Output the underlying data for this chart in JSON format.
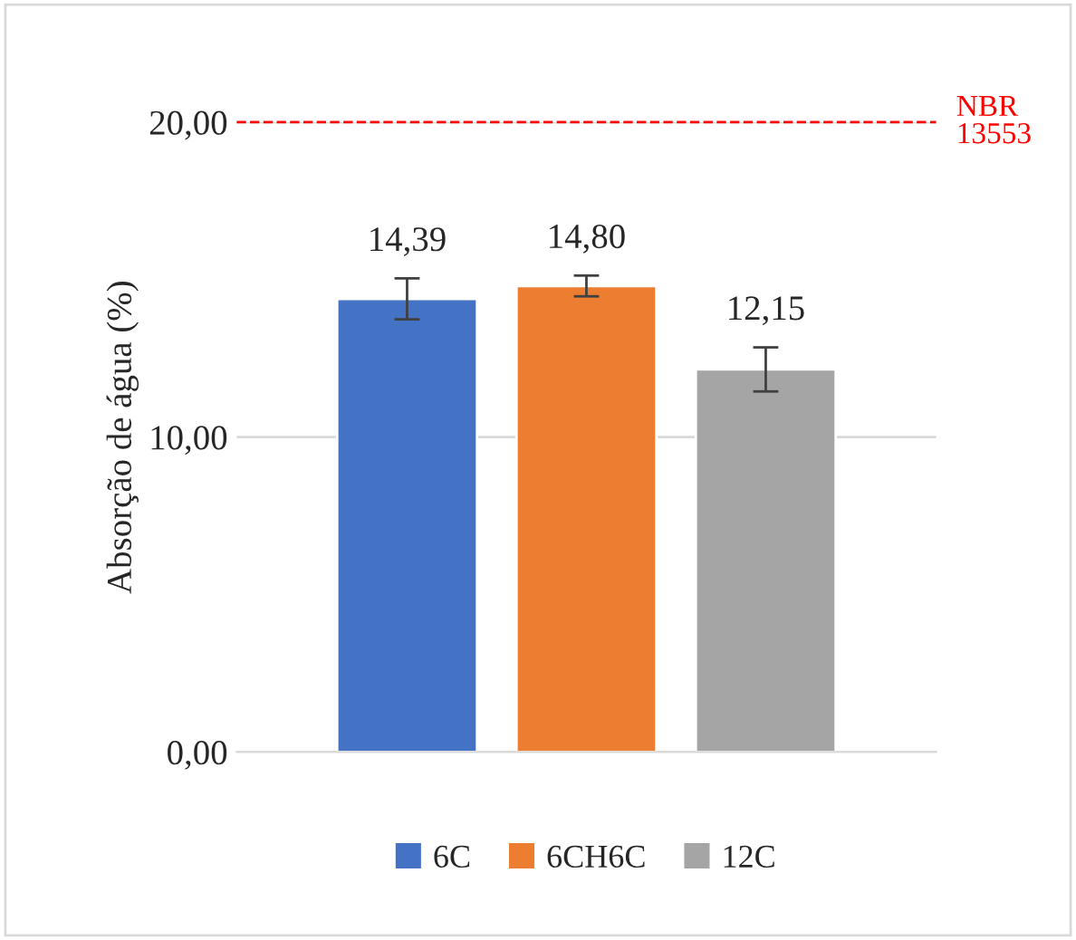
{
  "chart_data": {
    "type": "bar",
    "ylabel": "Absorção de água (%)",
    "categories": [
      null,
      null,
      null
    ],
    "series": [
      {
        "name": "6C",
        "color": "#4472c4",
        "values": [
          14.39,
          null,
          null
        ],
        "errors": [
          0.65,
          null,
          null
        ],
        "value_labels": [
          "14,39",
          null,
          null
        ]
      },
      {
        "name": "6CH6C",
        "color": "#ed7d31",
        "values": [
          null,
          14.8,
          null
        ],
        "errors": [
          null,
          0.33,
          null
        ],
        "value_labels": [
          null,
          "14,80",
          null
        ]
      },
      {
        "name": "12C",
        "color": "#a5a5a5",
        "values": [
          null,
          null,
          12.15
        ],
        "errors": [
          null,
          null,
          0.7
        ],
        "value_labels": [
          null,
          null,
          "12,15"
        ]
      }
    ],
    "ylim": [
      0,
      20
    ],
    "yticks": [
      {
        "value": 0,
        "label": "0,00"
      },
      {
        "value": 10,
        "label": "10,00"
      },
      {
        "value": 20,
        "label": "20,00"
      }
    ],
    "grid": "y",
    "legend": "bottom",
    "ref_lines": [
      {
        "axis": "y",
        "value": 20,
        "label": "NBR\n13553",
        "color": "#ff0000",
        "line_style": "dashed"
      }
    ]
  }
}
